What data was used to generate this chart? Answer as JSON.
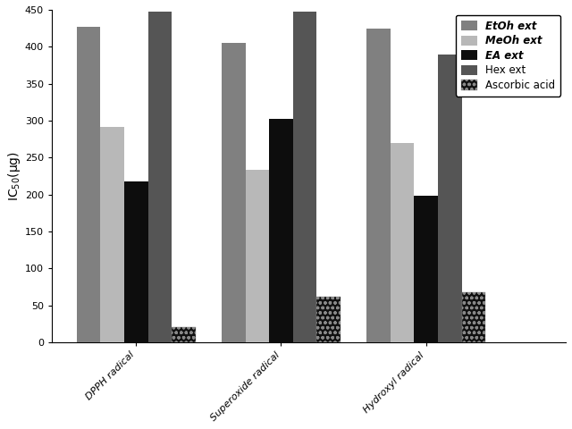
{
  "categories": [
    "DPPH radical",
    "Superoxide radical",
    "Hydroxyl radical"
  ],
  "series": {
    "EtOh ext": [
      427,
      405,
      425
    ],
    "MeOh ext": [
      292,
      233,
      270
    ],
    "EA ext": [
      218,
      302,
      198
    ],
    "Hex ext": [
      448,
      448,
      390
    ],
    "Ascorbic acid": [
      20,
      62,
      68
    ]
  },
  "colors": {
    "EtOh ext": "#808080",
    "MeOh ext": "#b8b8b8",
    "EA ext": "#0d0d0d",
    "Hex ext": "#555555",
    "Ascorbic acid": "#111111"
  },
  "ylabel": "IC$_{50}$(μg)",
  "ylim": [
    0,
    450
  ],
  "yticks": [
    0,
    50,
    100,
    150,
    200,
    250,
    300,
    350,
    400,
    450
  ],
  "legend_labels": [
    "EtOh ext",
    "MeOh ext",
    "EA ext",
    "Hex ext",
    "Ascorbic acid"
  ],
  "bar_width": 0.09,
  "group_centers": [
    0.27,
    0.82,
    1.37
  ],
  "figsize": [
    6.4,
    4.8
  ],
  "dpi": 100,
  "legend_italic": [
    "EtOh ext",
    "MeOh ext",
    "EA ext"
  ],
  "legend_normal": [
    "Hex ext",
    "Ascorbic acid"
  ]
}
